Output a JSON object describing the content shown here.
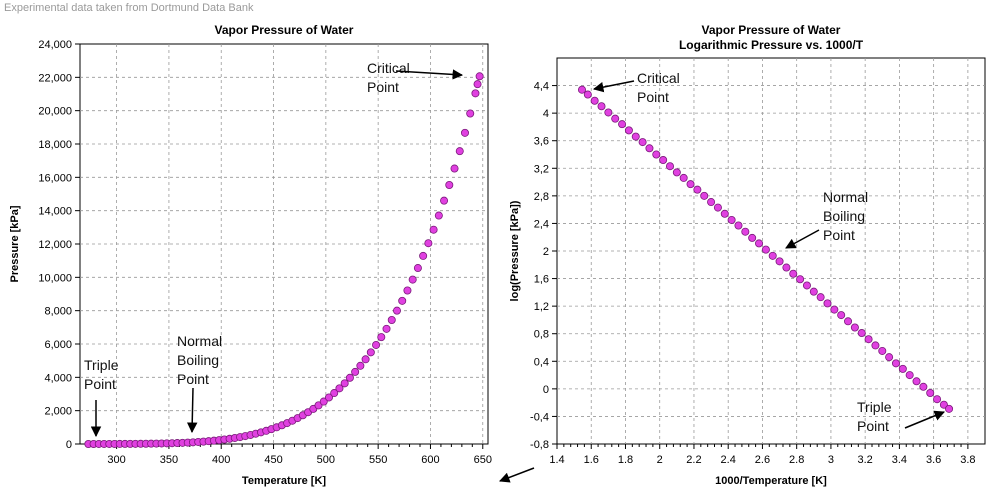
{
  "caption": "Experimental data taken from Dortmund Data Bank",
  "colors": {
    "marker_fill": "#e040e0",
    "marker_stroke": "#7a1a7a",
    "grid": "#999999"
  },
  "chart_data": [
    {
      "type": "scatter",
      "title": "Vapor Pressure of Water",
      "xlabel": "Temperature [K]",
      "ylabel": "Pressure [kPa]",
      "xlim": [
        265,
        655
      ],
      "ylim": [
        0,
        24000
      ],
      "x_ticks": [
        300,
        350,
        400,
        450,
        500,
        550,
        600,
        650
      ],
      "x_tick_labels": [
        "300",
        "350",
        "400",
        "450",
        "500",
        "550",
        "600",
        "650"
      ],
      "y_ticks": [
        0,
        2000,
        4000,
        6000,
        8000,
        10000,
        12000,
        14000,
        16000,
        18000,
        20000,
        22000,
        24000
      ],
      "y_tick_labels": [
        "0",
        "2,000",
        "4,000",
        "6,000",
        "8,000",
        "10,000",
        "12,000",
        "14,000",
        "16,000",
        "18,000",
        "20,000",
        "22,000",
        "24,000"
      ],
      "grid": true,
      "x": [
        273,
        278,
        283,
        288,
        293,
        298,
        303,
        308,
        313,
        318,
        323,
        328,
        333,
        338,
        343,
        348,
        353,
        358,
        363,
        368,
        373,
        378,
        383,
        388,
        393,
        398,
        403,
        408,
        413,
        418,
        423,
        428,
        433,
        438,
        443,
        448,
        453,
        458,
        463,
        468,
        473,
        478,
        483,
        488,
        493,
        498,
        503,
        508,
        513,
        518,
        523,
        528,
        533,
        538,
        543,
        548,
        553,
        558,
        563,
        568,
        573,
        578,
        583,
        588,
        593,
        598,
        603,
        608,
        613,
        618,
        623,
        628,
        633,
        638,
        643,
        645,
        647
      ],
      "y": [
        0.6,
        0.9,
        1.2,
        1.7,
        2.3,
        3.2,
        4.2,
        5.6,
        7.4,
        9.6,
        12.3,
        15.8,
        19.9,
        25.0,
        31.2,
        38.6,
        47.4,
        57.9,
        70.2,
        84.6,
        101,
        121,
        143,
        169,
        199,
        232,
        270,
        313,
        362,
        416,
        476,
        543,
        618,
        700,
        792,
        892,
        1002,
        1123,
        1255,
        1398,
        1554,
        1723,
        1907,
        2105,
        2318,
        2547,
        2793,
        3057,
        3339,
        3641,
        3973,
        4325,
        4692,
        5082,
        5500,
        5942,
        6412,
        6911,
        7440,
        8000,
        8589,
        9210,
        9865,
        10557,
        11284,
        12048,
        12858,
        13707,
        14600,
        15540,
        16529,
        17570,
        18670,
        19830,
        21040,
        21590,
        22064
      ],
      "annotations": [
        {
          "text": "Triple Point",
          "x": 273,
          "y": 0.6
        },
        {
          "text": "Normal Boiling Point",
          "x": 373,
          "y": 101
        },
        {
          "text": "Critical Point",
          "x": 647,
          "y": 22064
        }
      ]
    },
    {
      "type": "scatter",
      "title": "Vapor Pressure of Water",
      "subtitle": "Logarithmic Pressure vs. 1000/T",
      "xlabel": "1000/Temperature [K]",
      "ylabel": "log(Pressure [kPa])",
      "xlim": [
        1.4,
        3.9
      ],
      "ylim": [
        -0.8,
        4.8
      ],
      "x_ticks": [
        1.4,
        1.6,
        1.8,
        2,
        2.2,
        2.4,
        2.6,
        2.8,
        3,
        3.2,
        3.4,
        3.6,
        3.8
      ],
      "x_tick_labels": [
        "1.4",
        "1.6",
        "1.8",
        "2",
        "2.2",
        "2.4",
        "2.6",
        "2.8",
        "3",
        "3.2",
        "3.4",
        "3.6",
        "3.8"
      ],
      "y_ticks": [
        -0.8,
        -0.4,
        0,
        0.4,
        0.8,
        1.2,
        1.6,
        2,
        2.4,
        2.8,
        3.2,
        3.6,
        4,
        4.4
      ],
      "y_tick_labels": [
        "-0,8",
        "-0,4",
        "0",
        "0,4",
        "0,8",
        "1,2",
        "1,6",
        "2",
        "2,4",
        "2,8",
        "3,2",
        "3,6",
        "4",
        "4,4"
      ],
      "grid": true,
      "x": [
        1.546,
        1.58,
        1.62,
        1.66,
        1.7,
        1.74,
        1.78,
        1.82,
        1.86,
        1.9,
        1.94,
        1.98,
        2.02,
        2.06,
        2.1,
        2.14,
        2.18,
        2.22,
        2.26,
        2.3,
        2.34,
        2.38,
        2.42,
        2.46,
        2.5,
        2.54,
        2.58,
        2.62,
        2.66,
        2.7,
        2.74,
        2.78,
        2.82,
        2.86,
        2.9,
        2.94,
        2.98,
        3.02,
        3.06,
        3.1,
        3.14,
        3.18,
        3.22,
        3.26,
        3.3,
        3.34,
        3.38,
        3.42,
        3.46,
        3.5,
        3.54,
        3.58,
        3.62,
        3.66,
        3.69
      ],
      "y": [
        4.34,
        4.27,
        4.18,
        4.1,
        4.01,
        3.92,
        3.84,
        3.75,
        3.66,
        3.58,
        3.49,
        3.4,
        3.32,
        3.23,
        3.14,
        3.06,
        2.97,
        2.89,
        2.8,
        2.71,
        2.63,
        2.54,
        2.45,
        2.37,
        2.28,
        2.19,
        2.11,
        2.02,
        1.93,
        1.85,
        1.76,
        1.67,
        1.59,
        1.5,
        1.41,
        1.33,
        1.24,
        1.15,
        1.07,
        0.98,
        0.89,
        0.81,
        0.72,
        0.63,
        0.55,
        0.46,
        0.37,
        0.29,
        0.2,
        0.11,
        0.03,
        -0.06,
        -0.15,
        -0.23,
        -0.29
      ],
      "annotations": [
        {
          "text": "Critical Point",
          "x": 1.546,
          "y": 4.34
        },
        {
          "text": "Normal Boiling Point",
          "x": 2.68,
          "y": 2.0
        },
        {
          "text": "Triple Point",
          "x": 3.66,
          "y": -0.22
        }
      ]
    }
  ]
}
